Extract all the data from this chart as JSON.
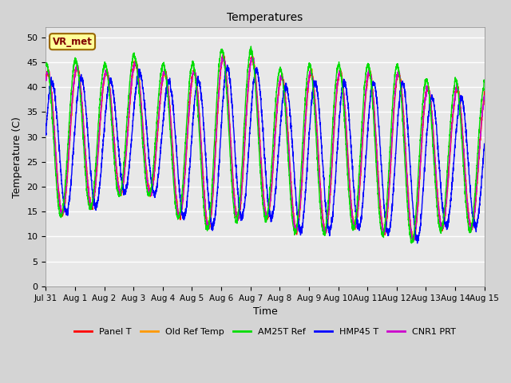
{
  "title": "Temperatures",
  "xlabel": "Time",
  "ylabel": "Temperature (C)",
  "ylim": [
    0,
    52
  ],
  "yticks": [
    0,
    5,
    10,
    15,
    20,
    25,
    30,
    35,
    40,
    45,
    50
  ],
  "fig_bg_color": "#d4d4d4",
  "plot_bg_color": "#e8e8e8",
  "annotation_text": "VR_met",
  "annotation_box_color": "#ffff99",
  "annotation_text_color": "#800000",
  "series_colors": {
    "Panel T": "#ff0000",
    "Old Ref Temp": "#ff9900",
    "AM25T Ref": "#00dd00",
    "HMP45 T": "#0000ff",
    "CNR1 PRT": "#cc00cc"
  },
  "line_width": 1.0,
  "num_points": 3600,
  "tick_labels": [
    "Jul 31",
    "Aug 1",
    "Aug 2",
    "Aug 3",
    "Aug 4",
    "Aug 5",
    "Aug 6",
    "Aug 7",
    "Aug 8",
    "Aug 9",
    "Aug 10",
    "Aug 11",
    "Aug 12",
    "Aug 13",
    "Aug 14",
    "Aug 15"
  ],
  "day_peaks": [
    43,
    44,
    43,
    45,
    43,
    43,
    46,
    46,
    42,
    43,
    43,
    43,
    43,
    40,
    39
  ],
  "day_mins": [
    13,
    16,
    16,
    21,
    17,
    12,
    12,
    15,
    13,
    10,
    12,
    12,
    10,
    9,
    14
  ],
  "hmp45_lag_hours": 2.5
}
